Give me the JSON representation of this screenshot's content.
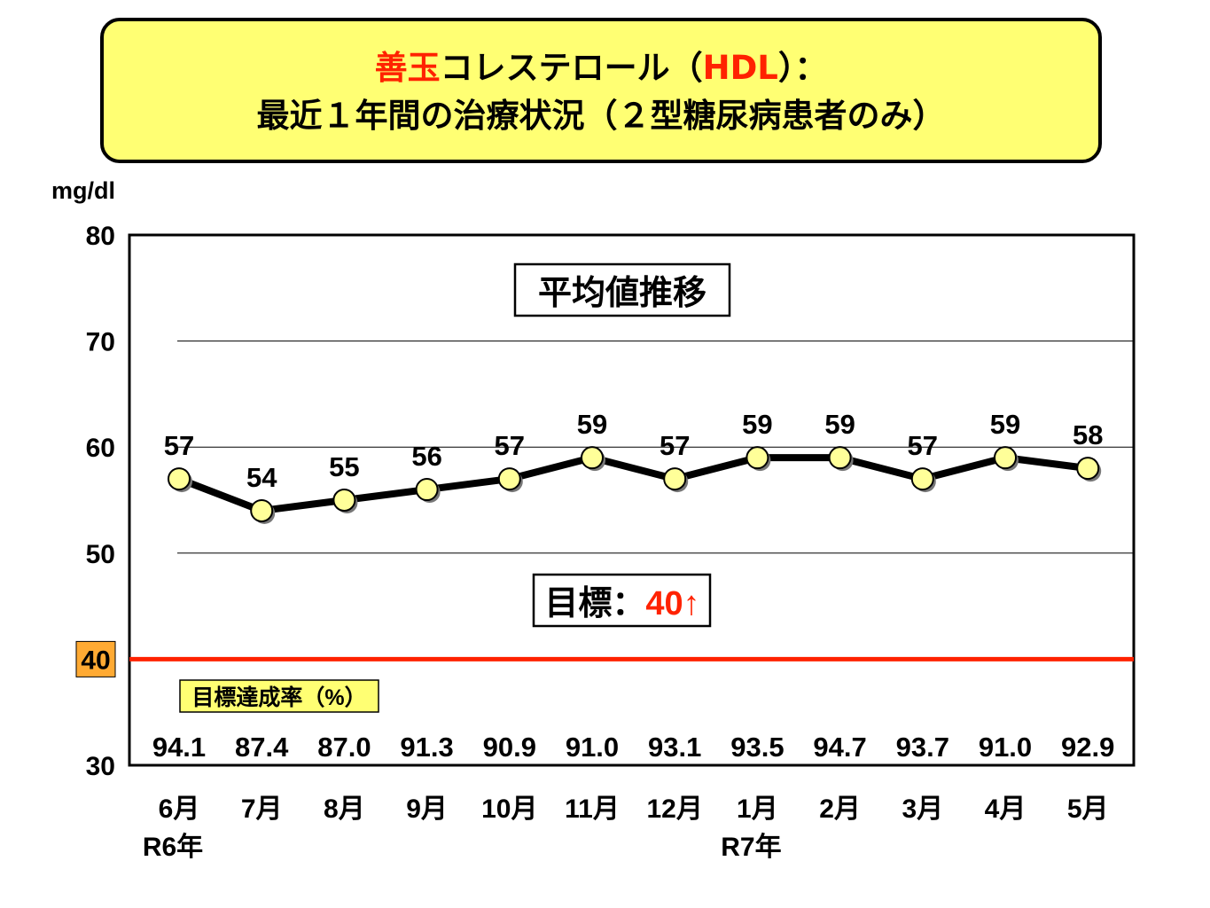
{
  "title": {
    "line1_highlight": "善玉",
    "line1_rest_a": "コレステロール（",
    "line1_abbr": "HDL",
    "line1_rest_b": "）：",
    "line2": "最近１年間の治療状況（２型糖尿病患者のみ）"
  },
  "chart_data": {
    "type": "line",
    "unit": "mg/dl",
    "annotation_title": "平均値推移",
    "target": {
      "label": "目標：",
      "value_label": "40↑",
      "value": 40,
      "color": "#ff2200"
    },
    "target_tick_label": "40",
    "achievement_label": "目標達成率（%）",
    "categories": [
      "6月",
      "7月",
      "8月",
      "9月",
      "10月",
      "11月",
      "12月",
      "1月",
      "2月",
      "3月",
      "4月",
      "5月"
    ],
    "year_labels": [
      {
        "index": 0,
        "text": "R6年"
      },
      {
        "index": 7,
        "text": "R7年"
      }
    ],
    "series": [
      {
        "values": [
          57,
          54,
          55,
          56,
          57,
          59,
          57,
          59,
          59,
          57,
          59,
          58
        ]
      }
    ],
    "achievement_rates": [
      "94.1",
      "87.4",
      "87.0",
      "91.3",
      "90.9",
      "91.0",
      "93.1",
      "93.5",
      "94.7",
      "93.7",
      "91.0",
      "92.9"
    ],
    "y_ticks": [
      "80",
      "70",
      "60",
      "50",
      "30"
    ],
    "ylim": [
      30,
      80
    ],
    "grid": true,
    "colors": {
      "line": "#000000",
      "marker": "#ffff99",
      "target_line": "#ff2200",
      "target_tick_bg": "#ffaa33",
      "achievement_bg": "#ffff73"
    }
  }
}
